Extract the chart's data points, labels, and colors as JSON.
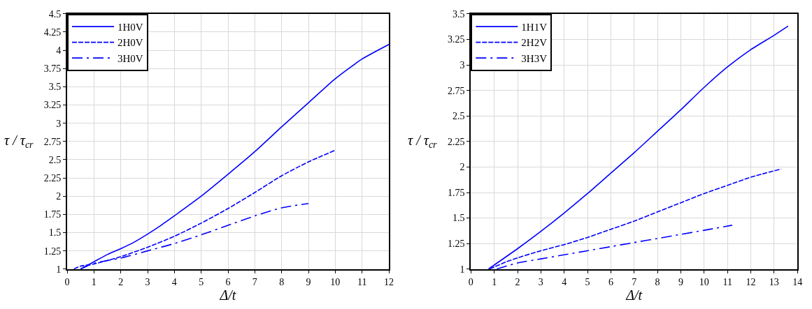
{
  "chart_data": [
    {
      "type": "line",
      "xlabel": "Δ/t",
      "ylabel": "τ / τ$_{cr}$",
      "xlim": [
        0,
        12
      ],
      "xticks": [
        0,
        1,
        2,
        3,
        4,
        5,
        6,
        7,
        8,
        9,
        10,
        11,
        12
      ],
      "ylim": [
        1,
        4.5
      ],
      "yticks": [
        1,
        1.25,
        1.5,
        1.75,
        2,
        2.25,
        2.5,
        2.75,
        3,
        3.25,
        3.5,
        3.75,
        4,
        4.25,
        4.5
      ],
      "grid": true,
      "legend": "top left",
      "marker": "none",
      "series": [
        {
          "name": "1H0V",
          "color": "#0000ff",
          "line_style": "solid",
          "x": [
            0.5,
            1,
            1.5,
            2,
            2.5,
            3,
            3.5,
            4,
            5,
            6,
            7,
            8,
            9,
            10,
            11,
            12
          ],
          "values": [
            1.0,
            1.1,
            1.2,
            1.28,
            1.37,
            1.48,
            1.6,
            1.73,
            2.0,
            2.3,
            2.61,
            2.95,
            3.28,
            3.61,
            3.88,
            4.08
          ]
        },
        {
          "name": "2H0V",
          "color": "#0000ff",
          "line_style": "dashed",
          "x": [
            0.25,
            0.5,
            1,
            2,
            3,
            4,
            5,
            6,
            7,
            8,
            9,
            10
          ],
          "values": [
            1.0,
            1.04,
            1.07,
            1.17,
            1.3,
            1.45,
            1.63,
            1.83,
            2.05,
            2.28,
            2.47,
            2.63
          ]
        },
        {
          "name": "3H0V",
          "color": "#0000ff",
          "line_style": "dashdot",
          "x": [
            0.5,
            1,
            2,
            3,
            4,
            5,
            6,
            7,
            8,
            9
          ],
          "values": [
            1.0,
            1.08,
            1.15,
            1.25,
            1.35,
            1.47,
            1.6,
            1.73,
            1.84,
            1.9
          ]
        }
      ]
    },
    {
      "type": "line",
      "xlabel": "Δ/t",
      "ylabel": "τ / τ$_{cr}$",
      "xlim": [
        0,
        14
      ],
      "xticks": [
        0,
        1,
        2,
        3,
        4,
        5,
        6,
        7,
        8,
        9,
        10,
        11,
        12,
        13,
        14
      ],
      "ylim": [
        1,
        3.5
      ],
      "yticks": [
        1,
        1.25,
        1.5,
        1.75,
        2,
        2.25,
        2.5,
        2.75,
        3,
        3.25,
        3.5
      ],
      "grid": true,
      "legend": "top left",
      "marker": "none",
      "series": [
        {
          "name": "1H1V",
          "color": "#0000ff",
          "line_style": "solid",
          "x": [
            0.75,
            2,
            3,
            4,
            5,
            6,
            7,
            8,
            9,
            10,
            11,
            12,
            13,
            13.6
          ],
          "values": [
            1.0,
            1.2,
            1.37,
            1.55,
            1.74,
            1.94,
            2.14,
            2.35,
            2.56,
            2.78,
            2.98,
            3.15,
            3.29,
            3.38
          ]
        },
        {
          "name": "2H2V",
          "color": "#0000ff",
          "line_style": "dashed",
          "x": [
            0.8,
            1.5,
            2,
            3,
            4,
            5,
            6,
            7,
            8,
            9,
            10,
            11,
            12,
            13.3
          ],
          "values": [
            1.0,
            1.07,
            1.11,
            1.18,
            1.24,
            1.31,
            1.39,
            1.47,
            1.56,
            1.65,
            1.74,
            1.82,
            1.9,
            1.98
          ]
        },
        {
          "name": "3H3V",
          "color": "#0000ff",
          "line_style": "dashdot",
          "x": [
            1.1,
            2,
            3,
            4,
            5,
            6,
            7,
            8,
            9,
            10,
            11.2
          ],
          "values": [
            1.0,
            1.06,
            1.1,
            1.14,
            1.18,
            1.22,
            1.26,
            1.3,
            1.34,
            1.38,
            1.43
          ]
        }
      ]
    }
  ]
}
